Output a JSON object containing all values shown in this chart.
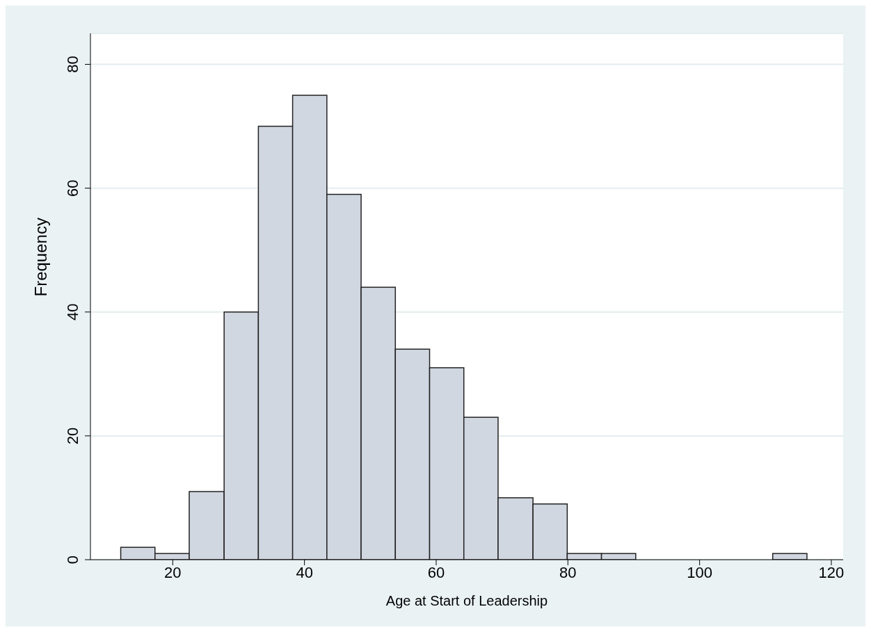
{
  "chart_data": {
    "type": "histogram",
    "xlabel": "Age at Start of Leadership",
    "ylabel": "Frequency",
    "bins": [
      12.1,
      17.3,
      22.5,
      27.8,
      33.0,
      38.2,
      43.4,
      48.6,
      53.8,
      59.0,
      64.2,
      69.4,
      74.7,
      79.9,
      85.1,
      90.3,
      111.1,
      116.3
    ],
    "values": [
      2,
      1,
      11,
      40,
      70,
      75,
      59,
      44,
      34,
      31,
      23,
      10,
      9,
      1,
      1,
      0,
      1
    ],
    "color": "#d1d7e1",
    "xlim": [
      7.5,
      121.8
    ],
    "xticks": [
      20,
      40,
      60,
      80,
      100,
      120
    ],
    "ylim": [
      0,
      85
    ],
    "yticks": [
      0,
      20,
      40,
      60,
      80
    ],
    "grid": "y"
  }
}
